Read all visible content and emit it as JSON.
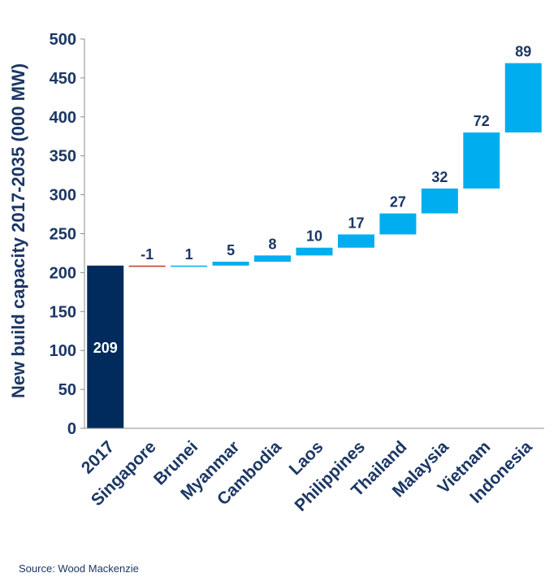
{
  "chart_data": {
    "type": "bar",
    "subtype": "waterfall",
    "ylabel": "New build capacity 2017-2035 (000 MW)",
    "ylim": [
      0,
      500
    ],
    "yticks": [
      0,
      50,
      100,
      150,
      200,
      250,
      300,
      350,
      400,
      450,
      500
    ],
    "grid": false,
    "categories": [
      "2017",
      "Singapore",
      "Brunei",
      "Myanmar",
      "Cambodia",
      "Laos",
      "Philippines",
      "Thailand",
      "Malaysia",
      "Vietnam",
      "Indonesia"
    ],
    "values": [
      209,
      -1,
      1,
      5,
      8,
      10,
      17,
      27,
      32,
      72,
      89
    ],
    "labels": [
      "209",
      "-1",
      "1",
      "5",
      "8",
      "10",
      "17",
      "27",
      "32",
      "72",
      "89"
    ],
    "colors": {
      "base": "#002b5c",
      "increase": "#00aeef",
      "decrease": "#c0392b",
      "text": "#1b3764",
      "axis": "#8c8c8c"
    }
  },
  "source": "Source: Wood Mackenzie"
}
